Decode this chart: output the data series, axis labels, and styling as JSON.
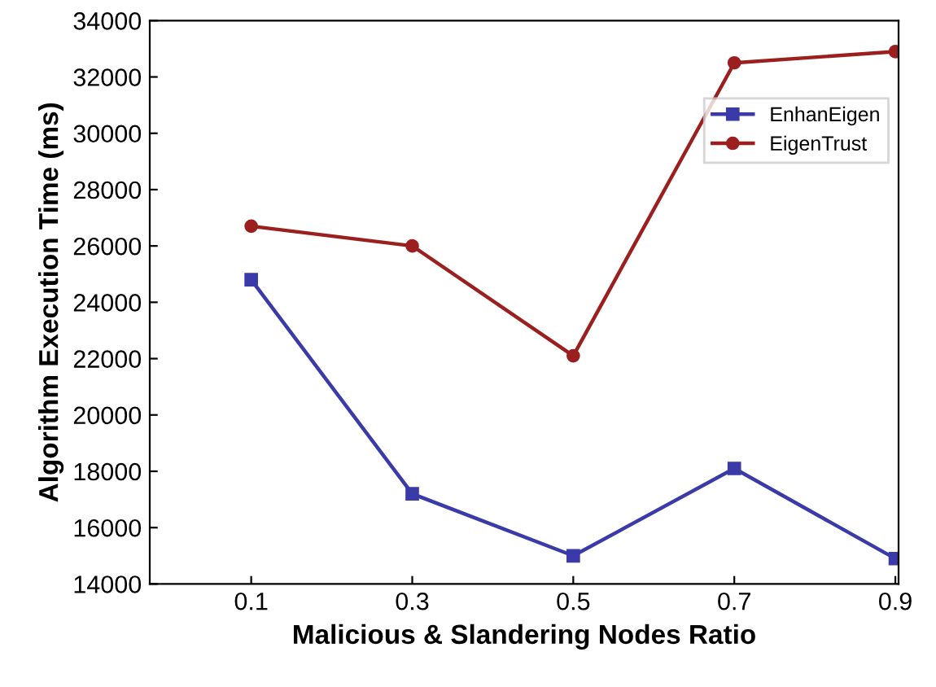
{
  "chart_data": {
    "type": "line",
    "xlabel": "Malicious & Slandering Nodes Ratio",
    "ylabel": "Algorithm Execution Time (ms)",
    "categories": [
      "0.1",
      "0.3",
      "0.5",
      "0.7",
      "0.9"
    ],
    "series": [
      {
        "name": "EnhanEigen",
        "color": "#3a3aa8",
        "marker": "square",
        "values": [
          24800,
          17200,
          15000,
          18100,
          14900
        ]
      },
      {
        "name": "EigenTrust",
        "color": "#9b1f1f",
        "marker": "circle",
        "values": [
          26700,
          26000,
          22100,
          32500,
          32900
        ]
      }
    ],
    "ylim": [
      14000,
      34000
    ],
    "yticks": [
      14000,
      16000,
      18000,
      20000,
      22000,
      24000,
      26000,
      28000,
      30000,
      32000,
      34000
    ],
    "grid": false,
    "legend": "top right",
    "line_style": "solid"
  }
}
